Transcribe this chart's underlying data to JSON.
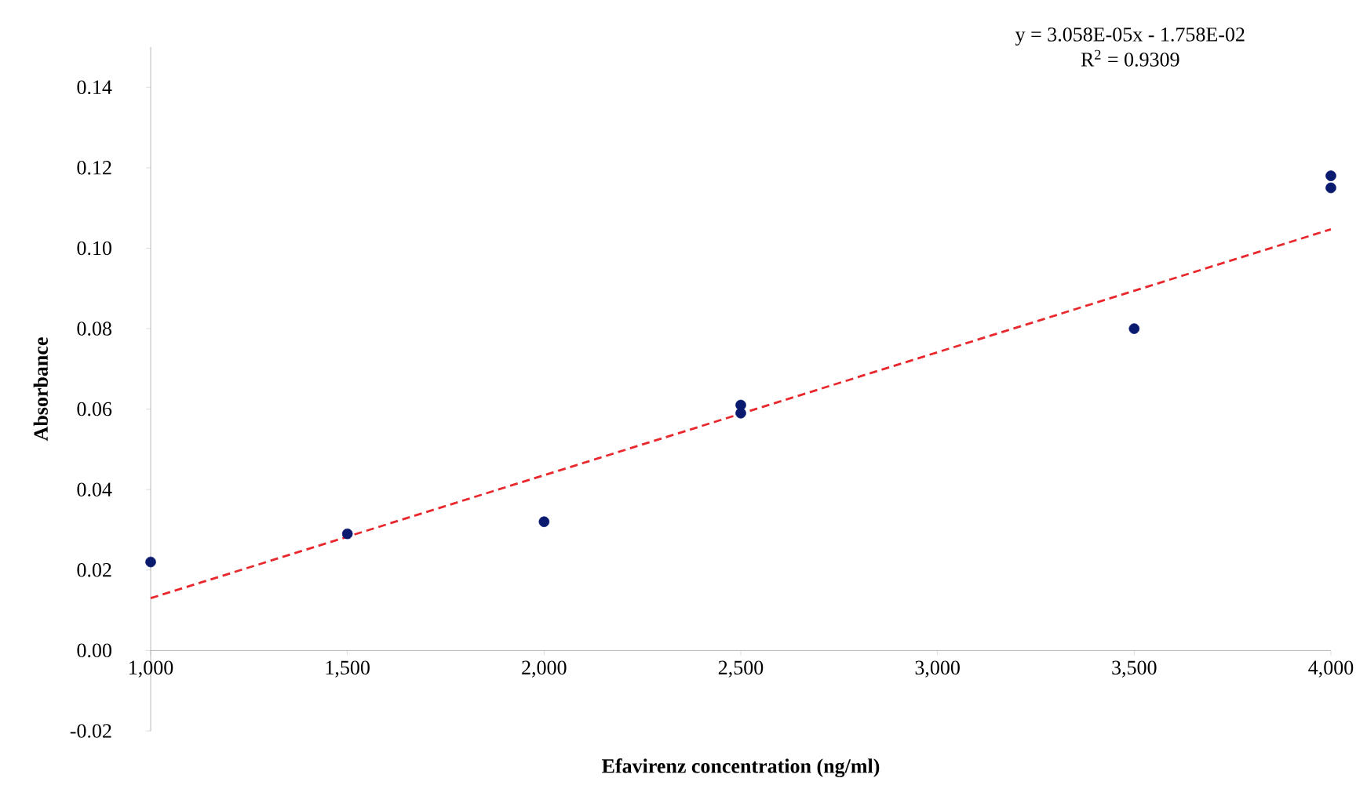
{
  "chart_data": {
    "type": "scatter",
    "xlabel": "Efavirenz concentration (ng/ml)",
    "ylabel": "Absorbance",
    "annotations": [
      "y = 3.058E-05x - 1.758E-02",
      "R$^{2}$ = 0.9309"
    ],
    "xlim": [
      1000,
      4000
    ],
    "ylim": [
      -0.02,
      0.15
    ],
    "xticks": [
      {
        "value": 1000,
        "label": "1,000"
      },
      {
        "value": 1500,
        "label": "1,500"
      },
      {
        "value": 2000,
        "label": "2,000"
      },
      {
        "value": 2500,
        "label": "2,500"
      },
      {
        "value": 3000,
        "label": "3,000"
      },
      {
        "value": 3500,
        "label": "3,500"
      },
      {
        "value": 4000,
        "label": "4,000"
      }
    ],
    "yticks": [
      {
        "value": -0.02,
        "label": "-0.02"
      },
      {
        "value": 0,
        "label": "0.00"
      },
      {
        "value": 0.02,
        "label": "0.02"
      },
      {
        "value": 0.04,
        "label": "0.04"
      },
      {
        "value": 0.06,
        "label": "0.06"
      },
      {
        "value": 0.08,
        "label": "0.08"
      },
      {
        "value": 0.1,
        "label": "0.10"
      },
      {
        "value": 0.12,
        "label": "0.12"
      },
      {
        "value": 0.14,
        "label": "0.14"
      }
    ],
    "series": [
      {
        "marker": "circle",
        "color": "#0a1a6e",
        "x": [
          1000,
          1500,
          2000,
          2500,
          2500,
          3500,
          4000,
          4000
        ],
        "values": [
          0.022,
          0.029,
          0.032,
          0.061,
          0.059,
          0.08,
          0.118,
          0.115
        ]
      },
      {
        "type": "line",
        "marker": "none",
        "line_style": "dashed",
        "color": "#e8282d",
        "x": [
          1000,
          4000
        ],
        "values": [
          0.013,
          0.1047
        ]
      }
    ]
  }
}
